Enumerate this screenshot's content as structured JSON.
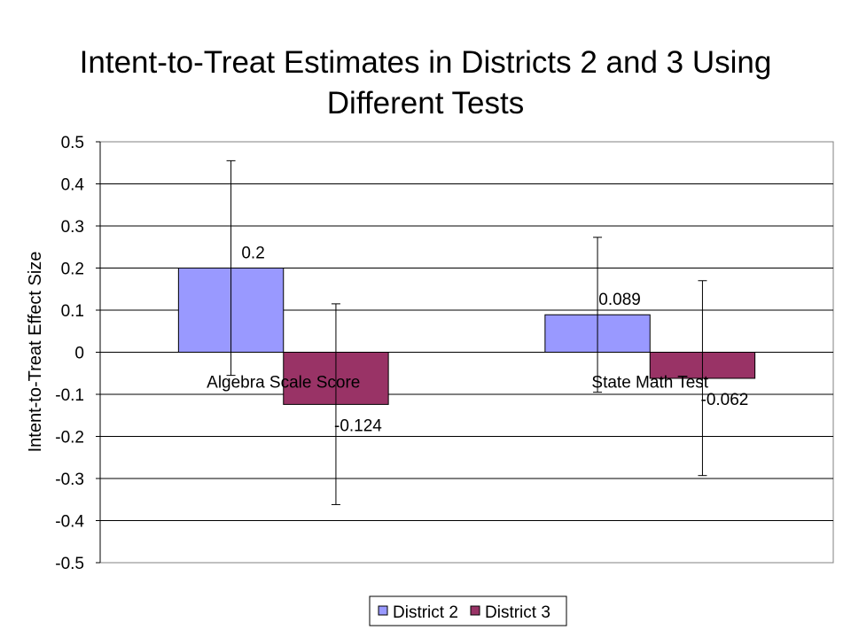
{
  "title": [
    "Intent-to-Treat Estimates in Districts 2 and 3 Using",
    "Different Tests"
  ],
  "chart_data": {
    "type": "bar",
    "title": "Intent-to-Treat Estimates in Districts 2 and 3 Using Different Tests",
    "xlabel": "",
    "ylabel": "Intent-to-Treat Effect Size",
    "categories": [
      "Algebra Scale Score",
      "State Math Test"
    ],
    "series": [
      {
        "name": "District 2",
        "color": "#9999FF",
        "values": [
          0.2,
          0.089
        ],
        "labels": [
          "0.2",
          "0.089"
        ],
        "error_low": [
          -0.055,
          -0.095
        ],
        "error_high": [
          0.455,
          0.273
        ]
      },
      {
        "name": "District 3",
        "color": "#993366",
        "values": [
          -0.124,
          -0.062
        ],
        "labels": [
          "-0.124",
          "-0.062"
        ],
        "error_low": [
          -0.362,
          -0.293
        ],
        "error_high": [
          0.115,
          0.17
        ]
      }
    ],
    "ylim": [
      -0.5,
      0.5
    ],
    "yticks": [
      "0.5",
      "0.4",
      "0.3",
      "0.2",
      "0.1",
      "0",
      "-0.1",
      "-0.2",
      "-0.3",
      "-0.4",
      "-0.5"
    ],
    "grid": true,
    "legend": "bottom"
  }
}
